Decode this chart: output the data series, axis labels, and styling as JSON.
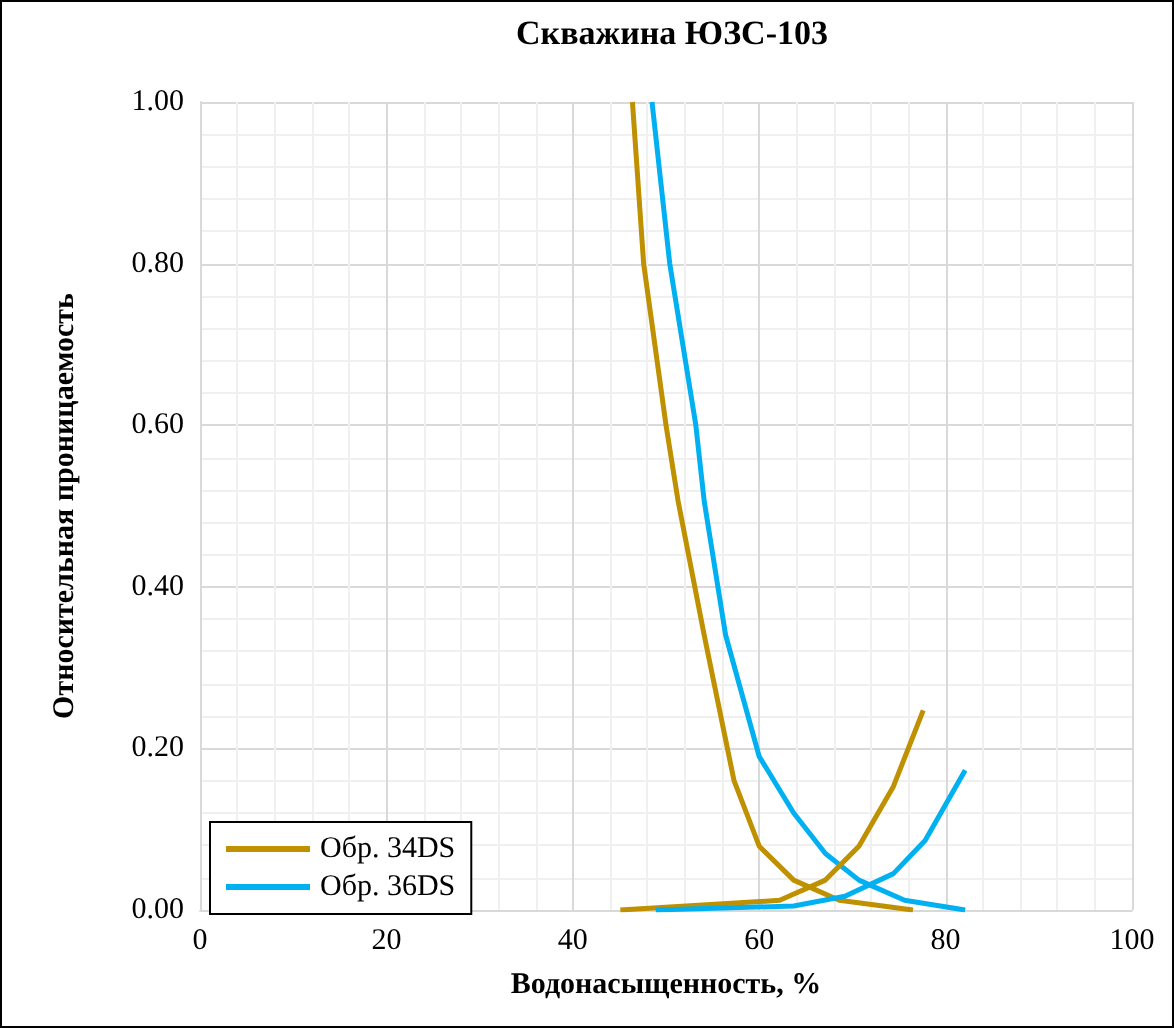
{
  "chart_data": {
    "type": "line",
    "title": "Скважина ЮЗС-103",
    "xlabel": "Водонасыщенность, %",
    "ylabel": "Относительная проницаемость",
    "xlim": [
      0,
      100
    ],
    "xticks": [
      0,
      20,
      40,
      60,
      80,
      100
    ],
    "ylim": [
      0,
      1
    ],
    "yticks": [
      {
        "value": 0,
        "label": "0.00"
      },
      {
        "value": 0.2,
        "label": "0.20"
      },
      {
        "value": 0.4,
        "label": "0.40"
      },
      {
        "value": 0.6,
        "label": "0.60"
      },
      {
        "value": 0.8,
        "label": "0.80"
      },
      {
        "value": 1,
        "label": "1.00"
      }
    ],
    "grid": true,
    "legend": "bottom left",
    "marker": "none",
    "line_style": "solid",
    "series": [
      {
        "name": "Обр. 34DS",
        "color": "#bf9000",
        "x": [
          46.4,
          47.6,
          50.0,
          51.3,
          54.1,
          57.3,
          60.0,
          63.7,
          68.6,
          76.5
        ],
        "values": [
          1,
          0.8,
          0.6,
          0.506,
          0.34,
          0.16,
          0.079,
          0.037,
          0.012,
          0
        ]
      },
      {
        "name": "Обр. 36DS",
        "color": "#00b0f0",
        "x": [
          48.5,
          50.4,
          53.2,
          54.1,
          56.4,
          60.0,
          63.7,
          67.1,
          70.7,
          75.6,
          82.1
        ],
        "values": [
          1,
          0.8,
          0.6,
          0.506,
          0.34,
          0.19,
          0.12,
          0.07,
          0.037,
          0.012,
          0
        ]
      },
      {
        "color": "#bf9000",
        "x": [
          45.1,
          62.2,
          67.1,
          70.7,
          74.4,
          77.6
        ],
        "values": [
          0,
          0.012,
          0.037,
          0.079,
          0.153,
          0.247
        ]
      },
      {
        "color": "#00b0f0",
        "x": [
          48.9,
          63.7,
          69.2,
          74.4,
          77.8,
          82.1
        ],
        "values": [
          0,
          0.005,
          0.017,
          0.045,
          0.086,
          0.173
        ]
      }
    ]
  }
}
